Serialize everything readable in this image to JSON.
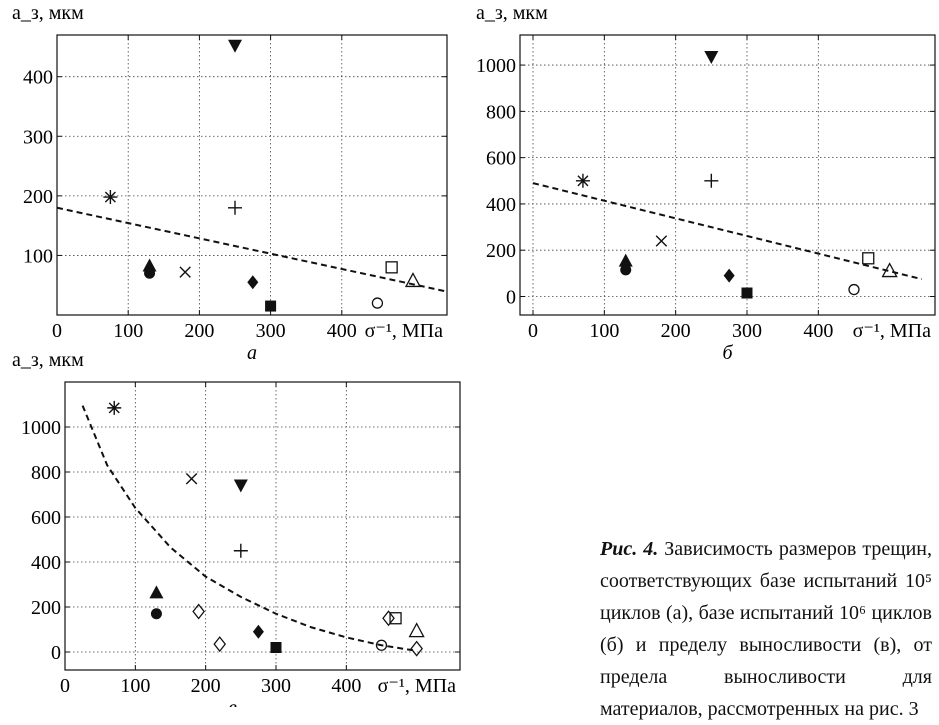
{
  "chart_data": [
    {
      "type": "scatter",
      "id": "a",
      "panel_label": "а",
      "ylabel": "a_з, мкм",
      "xlabel": "σ⁻¹, МПа",
      "xlim": [
        0,
        500
      ],
      "ylim": [
        0,
        470
      ],
      "xticks": [
        0,
        100,
        200,
        300,
        400
      ],
      "yticks": [
        100,
        200,
        300,
        400
      ],
      "grid": true,
      "points": [
        {
          "marker": "asterisk",
          "x": 75,
          "y": 198
        },
        {
          "marker": "filled-triangle",
          "x": 130,
          "y": 83
        },
        {
          "marker": "filled-circle",
          "x": 130,
          "y": 70
        },
        {
          "marker": "cross",
          "x": 180,
          "y": 72
        },
        {
          "marker": "filled-triangle-down",
          "x": 250,
          "y": 452
        },
        {
          "marker": "plus",
          "x": 250,
          "y": 180
        },
        {
          "marker": "filled-diamond",
          "x": 275,
          "y": 55
        },
        {
          "marker": "filled-square",
          "x": 300,
          "y": 15
        },
        {
          "marker": "open-circle",
          "x": 450,
          "y": 20
        },
        {
          "marker": "open-square",
          "x": 470,
          "y": 80
        },
        {
          "marker": "open-triangle",
          "x": 500,
          "y": 58
        }
      ],
      "trend": {
        "kind": "linear",
        "from": [
          0,
          180
        ],
        "to": [
          545,
          40
        ]
      }
    },
    {
      "type": "scatter",
      "id": "b",
      "panel_label": "б",
      "ylabel": "a_з, мкм",
      "xlabel": "σ⁻¹, МПа",
      "xlim": [
        0,
        500
      ],
      "ylim": [
        -80,
        1130
      ],
      "xticks": [
        0,
        100,
        200,
        300,
        400
      ],
      "yticks": [
        0,
        200,
        400,
        600,
        800,
        1000
      ],
      "grid": true,
      "points": [
        {
          "marker": "asterisk",
          "x": 70,
          "y": 500
        },
        {
          "marker": "filled-triangle",
          "x": 130,
          "y": 155
        },
        {
          "marker": "filled-circle",
          "x": 130,
          "y": 115
        },
        {
          "marker": "cross",
          "x": 180,
          "y": 240
        },
        {
          "marker": "filled-triangle-down",
          "x": 250,
          "y": 1035
        },
        {
          "marker": "plus",
          "x": 250,
          "y": 500
        },
        {
          "marker": "filled-diamond",
          "x": 275,
          "y": 90
        },
        {
          "marker": "filled-square",
          "x": 300,
          "y": 15
        },
        {
          "marker": "open-circle",
          "x": 450,
          "y": 30
        },
        {
          "marker": "open-square",
          "x": 470,
          "y": 165
        },
        {
          "marker": "open-triangle",
          "x": 500,
          "y": 112
        }
      ],
      "trend": {
        "kind": "linear",
        "from": [
          0,
          490
        ],
        "to": [
          545,
          75
        ]
      }
    },
    {
      "type": "scatter",
      "id": "c",
      "panel_label": "в",
      "ylabel": "a_з, мкм",
      "xlabel": "σ⁻¹, МПа",
      "xlim": [
        0,
        500
      ],
      "ylim": [
        -80,
        1200
      ],
      "xticks": [
        0,
        100,
        200,
        300,
        400
      ],
      "yticks": [
        0,
        200,
        400,
        600,
        800,
        1000
      ],
      "grid": true,
      "points": [
        {
          "marker": "asterisk",
          "x": 70,
          "y": 1085
        },
        {
          "marker": "cross",
          "x": 180,
          "y": 770
        },
        {
          "marker": "filled-triangle-down",
          "x": 250,
          "y": 740
        },
        {
          "marker": "plus",
          "x": 250,
          "y": 450
        },
        {
          "marker": "filled-triangle",
          "x": 130,
          "y": 265
        },
        {
          "marker": "filled-circle",
          "x": 130,
          "y": 170
        },
        {
          "marker": "open-diamond",
          "x": 190,
          "y": 180
        },
        {
          "marker": "open-diamond",
          "x": 220,
          "y": 35
        },
        {
          "marker": "filled-diamond",
          "x": 275,
          "y": 90
        },
        {
          "marker": "filled-square",
          "x": 300,
          "y": 20
        },
        {
          "marker": "open-circle",
          "x": 450,
          "y": 30
        },
        {
          "marker": "open-diamond",
          "x": 460,
          "y": 150
        },
        {
          "marker": "open-square",
          "x": 470,
          "y": 150
        },
        {
          "marker": "open-triangle",
          "x": 500,
          "y": 95
        },
        {
          "marker": "open-diamond",
          "x": 500,
          "y": 15
        }
      ],
      "trend": {
        "kind": "curve",
        "points": [
          [
            25,
            1095
          ],
          [
            60,
            830
          ],
          [
            100,
            640
          ],
          [
            150,
            465
          ],
          [
            200,
            335
          ],
          [
            250,
            245
          ],
          [
            300,
            170
          ],
          [
            350,
            110
          ],
          [
            400,
            65
          ],
          [
            450,
            30
          ],
          [
            500,
            5
          ]
        ]
      }
    }
  ],
  "caption": {
    "figure": "Рис. 4.",
    "text": " Зависимость размеров трещин, соответствующих базе испытаний 10⁵ циклов (а), базе испытаний 10⁶ циклов (б) и пределу выносливости (в), от предела выносливости для материалов, рассмотренных на рис. 3"
  }
}
